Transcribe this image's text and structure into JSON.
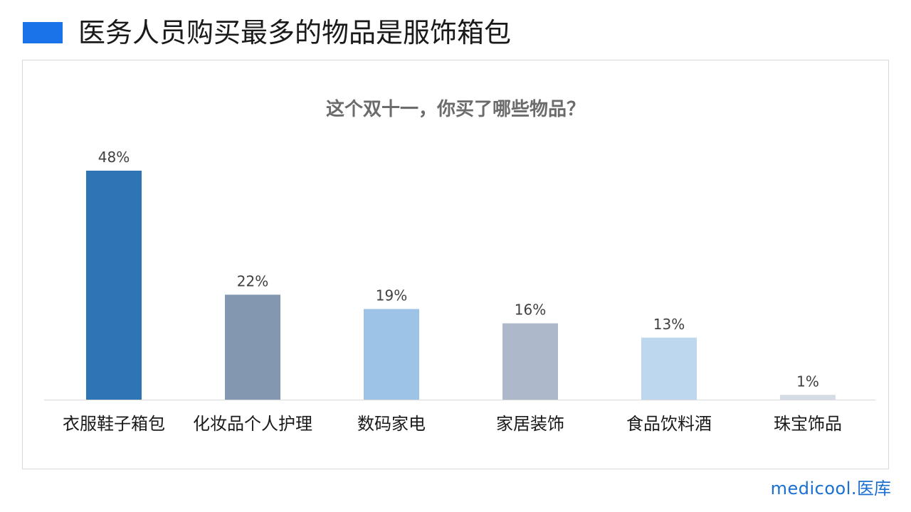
{
  "header": {
    "title": "医务人员购买最多的物品是服饰箱包",
    "accent_color": "#1a73e8"
  },
  "brand": {
    "latin": "medicool.",
    "chinese": "医库",
    "color": "#1a6fd1"
  },
  "chart_data": {
    "type": "bar",
    "title": "这个双十一，你买了哪些物品？",
    "xlabel": "",
    "ylabel": "",
    "ylim": [
      0,
      48
    ],
    "grid": false,
    "categories": [
      "衣服鞋子箱包",
      "化妆品个人护理",
      "数码家电",
      "家居装饰",
      "食品饮料酒",
      "珠宝饰品"
    ],
    "values": [
      48,
      22,
      19,
      16,
      13,
      1
    ],
    "data_labels": [
      "48%",
      "22%",
      "19%",
      "16%",
      "13%",
      "1%"
    ],
    "colors": [
      "#2e75b6",
      "#8497b0",
      "#9dc3e6",
      "#adb9ca",
      "#bdd7ee",
      "#d6dce5"
    ]
  }
}
